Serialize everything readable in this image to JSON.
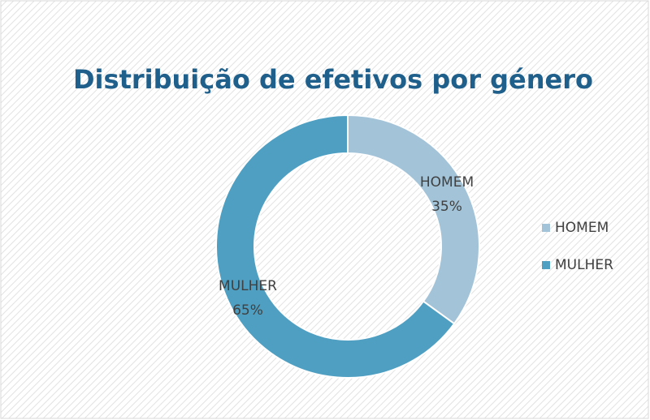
{
  "chart_data": {
    "type": "donut",
    "title": "Distribuição de efetivos por género",
    "categories": [
      "HOMEM",
      "MULHER"
    ],
    "values": [
      35,
      65
    ],
    "value_labels": [
      "35%",
      "65%"
    ],
    "colors": [
      "#a3c3d8",
      "#4f9fc2"
    ],
    "legend": "right"
  }
}
